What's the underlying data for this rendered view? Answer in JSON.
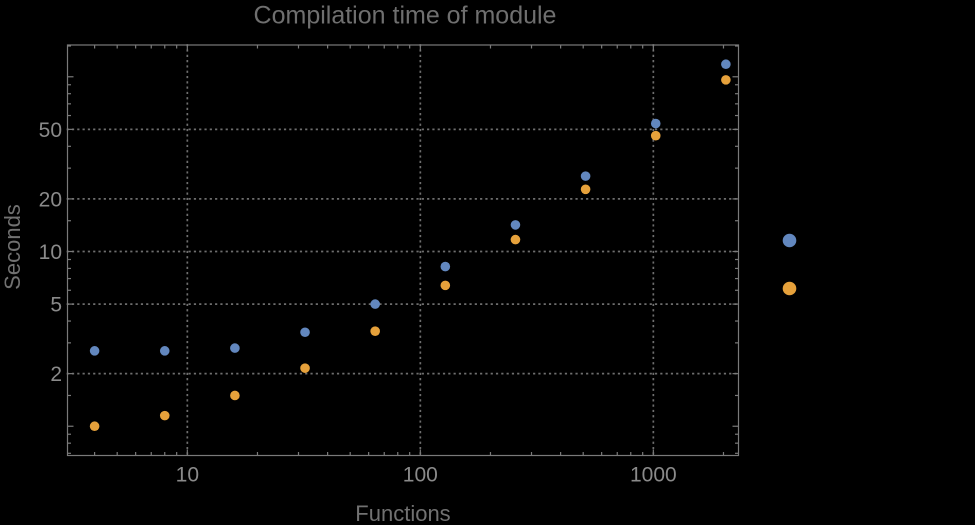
{
  "window": {
    "background": "#000000"
  },
  "chart_data": {
    "type": "scatter",
    "title": "Compilation time of module",
    "xlabel": "Functions",
    "ylabel": "Seconds",
    "x_scale": "log",
    "y_scale": "log",
    "x": [
      4,
      8,
      16,
      32,
      64,
      128,
      256,
      512,
      1024,
      2048
    ],
    "series": [
      {
        "name": "blue",
        "color": "#6287BE",
        "values": [
          2.7,
          2.7,
          2.8,
          3.45,
          5.0,
          8.2,
          14.2,
          27.0,
          54.0,
          118.0
        ]
      },
      {
        "name": "orange",
        "color": "#E6A13B",
        "values": [
          1.0,
          1.15,
          1.5,
          2.15,
          3.5,
          6.4,
          11.7,
          22.7,
          46.0,
          96.0
        ]
      }
    ],
    "xlim": [
      3.06,
      2320
    ],
    "ylim": [
      0.68,
      152
    ],
    "x_axis": {
      "ticks_labeled": [
        10,
        100,
        1000
      ],
      "tick_labels": [
        "10",
        "100",
        "1000"
      ],
      "ticks_minor": [
        4,
        5,
        6,
        7,
        8,
        9,
        20,
        30,
        40,
        50,
        60,
        70,
        80,
        90,
        200,
        300,
        400,
        500,
        600,
        700,
        800,
        900,
        2000
      ]
    },
    "y_axis": {
      "ticks_labeled": [
        2,
        5,
        10,
        20,
        50
      ],
      "tick_labels": [
        "2",
        "5",
        "10",
        "20",
        "50"
      ],
      "ticks_major_unlabeled": [
        1,
        100
      ],
      "ticks_minor": [
        0.7,
        0.8,
        0.9,
        1.5,
        3,
        4,
        6,
        7,
        8,
        9,
        15,
        30,
        40,
        60,
        70,
        80,
        90,
        150
      ]
    },
    "grid": {
      "style": "dotted",
      "color": "#6e6e6e",
      "x_lines": [
        10,
        100,
        1000
      ],
      "y_lines": [
        2,
        5,
        10,
        20,
        50
      ]
    },
    "legend": {
      "position": "right-of-plot",
      "entries": [
        {
          "label": "",
          "color": "#6287BE"
        },
        {
          "label": "",
          "color": "#E6A13B"
        }
      ]
    },
    "styles": {
      "frame_color": "#7a7a7a",
      "tick_label_color": "#8a8a8a",
      "marker_radius": 4.8,
      "legend_marker_radius": 6.8
    }
  }
}
